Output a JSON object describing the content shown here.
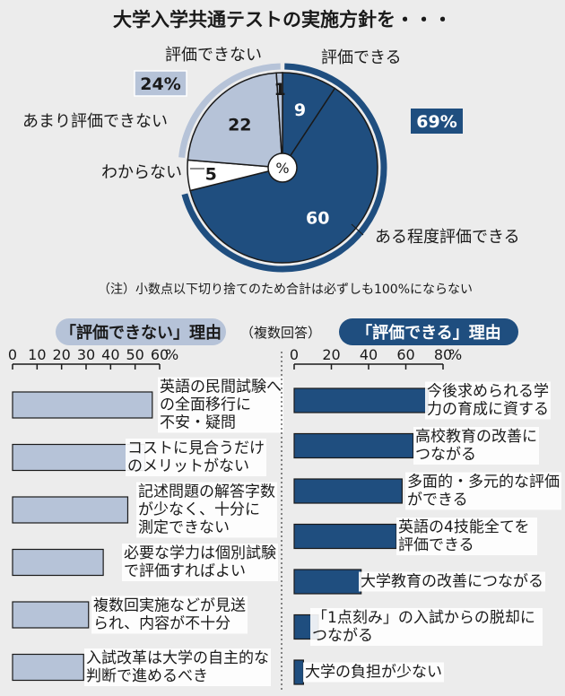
{
  "title": "大学入学共通テストの実施方針を・・・",
  "colors": {
    "dark": "#1f4e7f",
    "light": "#b6c3d8",
    "white": "#ffffff",
    "ink": "#1a1a1a",
    "background": "#ececec"
  },
  "chart_data": [
    {
      "type": "pie",
      "center_label": "%",
      "slices": [
        {
          "label": "評価できる",
          "value": 9,
          "color": "#1f4e7f"
        },
        {
          "label": "ある程度評価できる",
          "value": 60,
          "color": "#1f4e7f"
        },
        {
          "label": "わからない",
          "value": 5,
          "color": "#ffffff"
        },
        {
          "label": "あまり評価できない",
          "value": 22,
          "color": "#b6c3d8"
        },
        {
          "label": "評価できない",
          "value": 1,
          "color": "#b6c3d8"
        }
      ],
      "groups": [
        {
          "value": "69%",
          "members": [
            "評価できる",
            "ある程度評価できる"
          ],
          "color": "#1f4e7f"
        },
        {
          "value": "24%",
          "members": [
            "あまり評価できない",
            "評価できない"
          ],
          "color": "#b6c3d8"
        }
      ],
      "note": "（注）小数点以下切り捨てのため合計は必ずしも100%にならない"
    },
    {
      "type": "bar",
      "orientation": "horizontal",
      "title": "「評価できない」理由",
      "subtitle": "（複数回答）",
      "ticks": [
        "0",
        "10",
        "20",
        "30",
        "40",
        "50",
        "60"
      ],
      "unit": "%",
      "xlim": [
        0,
        60
      ],
      "color": "#b6c3d8",
      "categories": [
        "英語の民間試験への全面移行に不安・疑問",
        "コストに見合うだけのメリットがない",
        "記述問題の解答字数が少なく、十分に測定できない",
        "必要な学力は個別試験で評価すればよい",
        "複数回実施などが見送られ、内容が不十分",
        "入試改革は大学の自主的な判断で進めるべき"
      ],
      "labels": [
        [
          "英語の民間試験へ",
          "の全面移行に",
          "不安・疑問"
        ],
        [
          "コストに見合うだけ",
          "のメリットがない"
        ],
        [
          "記述問題の解答字数",
          "が少なく、十分に",
          "測定できない"
        ],
        [
          "必要な学力は個別試験",
          "で評価すればよい"
        ],
        [
          "複数回実施などが見送",
          "られ、内容が不十分"
        ],
        [
          "入試改革は大学の自主的な",
          "判断で進めるべき"
        ]
      ],
      "values": [
        57,
        54,
        47,
        37,
        31,
        29
      ]
    },
    {
      "type": "bar",
      "orientation": "horizontal",
      "title": "「評価できる」理由",
      "ticks": [
        "0",
        "20",
        "40",
        "60",
        "80"
      ],
      "unit": "%",
      "xlim": [
        0,
        80
      ],
      "color": "#1f4e7f",
      "categories": [
        "今後求められる学力の育成に資する",
        "高校教育の改善につながる",
        "多面的・多元的な評価ができる",
        "英語の4技能全てを評価できる",
        "大学教育の改善につながる",
        "「1点刻み」の入試からの脱却につながる",
        "大学の負担が少ない"
      ],
      "labels": [
        [
          "今後求められる学",
          "力の育成に資する"
        ],
        [
          "高校教育の改善に",
          "つながる"
        ],
        [
          "多面的・多元的な評価",
          "ができる"
        ],
        [
          "英語の4技能全てを",
          "評価できる"
        ],
        [
          "大学教育の改善につながる"
        ],
        [
          "「1点刻み」の入試からの脱却に",
          "つながる"
        ],
        [
          "大学の負担が少ない"
        ]
      ],
      "values": [
        72,
        64,
        58,
        55,
        36,
        13,
        5
      ]
    }
  ]
}
